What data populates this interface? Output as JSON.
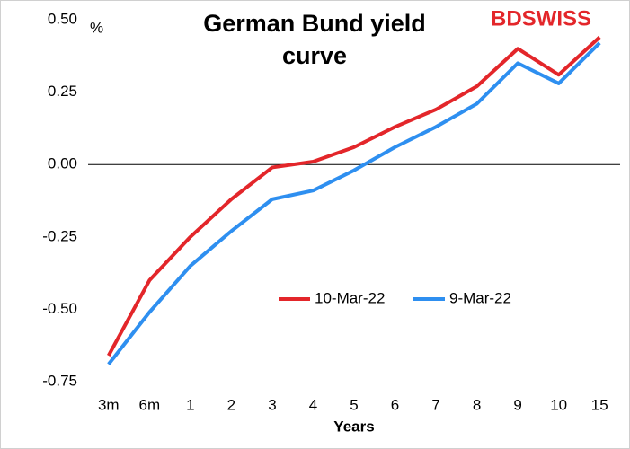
{
  "chart_data": {
    "type": "line",
    "title": "German Bund yield curve",
    "logo": "BDSWISS",
    "y_label": "%",
    "x_label": "Years",
    "categories": [
      "3m",
      "6m",
      "1",
      "2",
      "3",
      "4",
      "5",
      "6",
      "7",
      "8",
      "9",
      "10",
      "15"
    ],
    "series": [
      {
        "name": "10-Mar-22",
        "color": "#e3262a",
        "values": [
          -0.66,
          -0.4,
          -0.25,
          -0.12,
          -0.01,
          0.01,
          0.06,
          0.13,
          0.19,
          0.27,
          0.4,
          0.31,
          0.44
        ]
      },
      {
        "name": "9-Mar-22",
        "color": "#2e8ff0",
        "values": [
          -0.69,
          -0.51,
          -0.35,
          -0.23,
          -0.12,
          -0.09,
          -0.02,
          0.06,
          0.13,
          0.21,
          0.35,
          0.28,
          0.42
        ]
      }
    ],
    "ylim": [
      -0.75,
      0.5
    ],
    "yticks": [
      {
        "value": 0.5,
        "label": "0.50"
      },
      {
        "value": 0.25,
        "label": "0.25"
      },
      {
        "value": 0,
        "label": "0.00"
      },
      {
        "value": -0.25,
        "label": "-0.25"
      },
      {
        "value": -0.5,
        "label": "-0.50"
      },
      {
        "value": -0.75,
        "label": "-0.75"
      }
    ],
    "grid": false
  }
}
